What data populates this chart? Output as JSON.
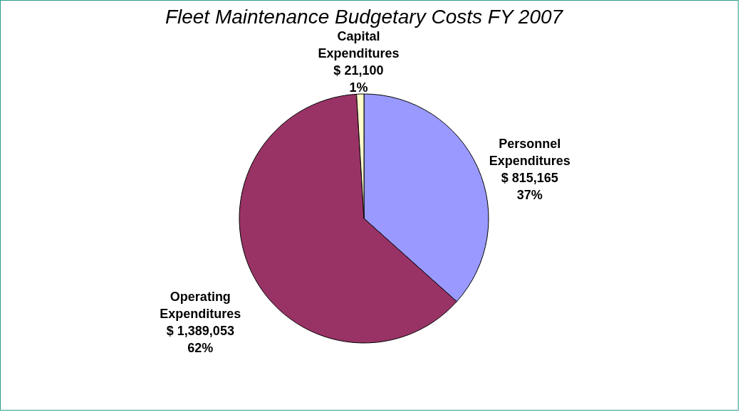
{
  "chart_data": {
    "type": "pie",
    "title": "Fleet Maintenance Budgetary Costs FY 2007",
    "categories": [
      "Personnel Expenditures",
      "Operating Expenditures",
      "Capital Expenditures"
    ],
    "values": [
      815165,
      1389053,
      21100
    ],
    "colors": [
      "#9999ff",
      "#993366",
      "#ffffcc"
    ],
    "value_labels": [
      "$ 815,165\n37%",
      "$ 1,389,053\n62%",
      "$ 21,100\n1%"
    ],
    "legend": false
  }
}
